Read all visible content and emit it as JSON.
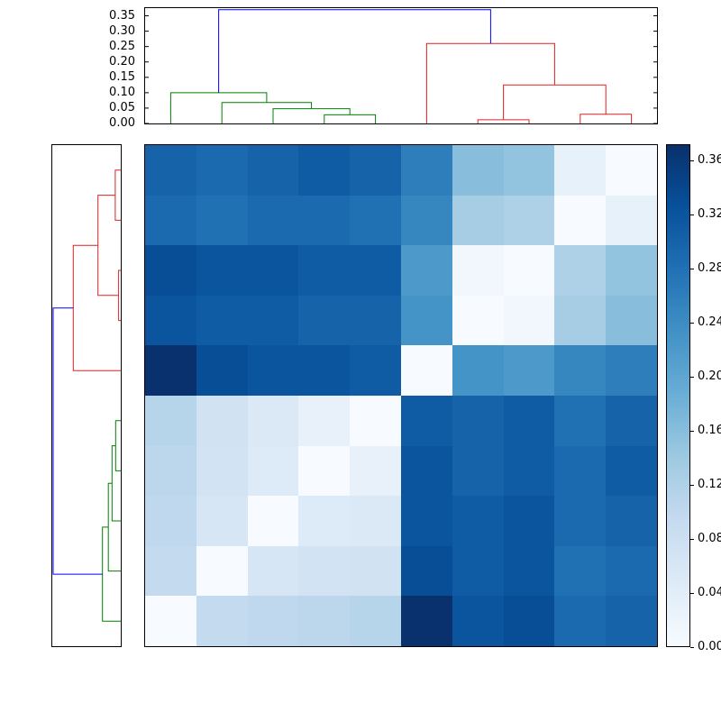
{
  "figure": {
    "background": "#ffffff",
    "colors": {
      "green": "#008000",
      "red": "#e02020",
      "blue": "#0000ff",
      "axis": "#000000"
    }
  },
  "chart_data": {
    "type": "heatmap",
    "title": "",
    "subtitle": "",
    "colormap": "Blues",
    "vmin": 0,
    "vmax": 0.372,
    "n": 10,
    "grid": false,
    "legend": "colorbar-right",
    "matrix": [
      [
        0.3,
        0.29,
        0.3,
        0.31,
        0.3,
        0.26,
        0.16,
        0.15,
        0.03,
        0.0
      ],
      [
        0.29,
        0.28,
        0.29,
        0.29,
        0.28,
        0.25,
        0.13,
        0.12,
        0.0,
        0.03
      ],
      [
        0.33,
        0.32,
        0.32,
        0.31,
        0.31,
        0.22,
        0.012,
        0.0,
        0.12,
        0.15
      ],
      [
        0.32,
        0.31,
        0.31,
        0.3,
        0.3,
        0.23,
        0.0,
        0.012,
        0.13,
        0.16
      ],
      [
        0.37,
        0.33,
        0.32,
        0.32,
        0.31,
        0.0,
        0.23,
        0.22,
        0.25,
        0.26
      ],
      [
        0.11,
        0.072,
        0.052,
        0.028,
        0.0,
        0.31,
        0.3,
        0.31,
        0.28,
        0.3
      ],
      [
        0.105,
        0.07,
        0.048,
        0.0,
        0.028,
        0.32,
        0.3,
        0.31,
        0.29,
        0.31
      ],
      [
        0.1,
        0.062,
        0.0,
        0.048,
        0.052,
        0.32,
        0.31,
        0.32,
        0.29,
        0.3
      ],
      [
        0.095,
        0.0,
        0.062,
        0.07,
        0.072,
        0.33,
        0.31,
        0.32,
        0.28,
        0.29
      ],
      [
        0.0,
        0.095,
        0.1,
        0.105,
        0.11,
        0.37,
        0.32,
        0.33,
        0.29,
        0.3
      ]
    ],
    "colorbar_ticks": [
      0.0,
      0.04,
      0.08,
      0.12,
      0.16,
      0.2,
      0.24,
      0.28,
      0.32,
      0.36
    ],
    "dendro_axis_ticks": [
      0.0,
      0.05,
      0.1,
      0.15,
      0.2,
      0.25,
      0.3,
      0.35
    ],
    "dendro_axis_max": 0.375,
    "top_dendrogram": {
      "orientation": "top",
      "links": [
        {
          "x1": 3.5,
          "h1": 0,
          "x2": 4.5,
          "h2": 0,
          "h": 0.028,
          "color": "green"
        },
        {
          "x1": 2.5,
          "h1": 0,
          "x2": 4.0,
          "h2": 0.028,
          "h": 0.048,
          "color": "green"
        },
        {
          "x1": 1.5,
          "h1": 0,
          "x2": 3.25,
          "h2": 0.048,
          "h": 0.068,
          "color": "green"
        },
        {
          "x1": 0.5,
          "h1": 0,
          "x2": 2.375,
          "h2": 0.068,
          "h": 0.1,
          "color": "green"
        },
        {
          "x1": 6.5,
          "h1": 0,
          "x2": 7.5,
          "h2": 0,
          "h": 0.012,
          "color": "red"
        },
        {
          "x1": 8.5,
          "h1": 0,
          "x2": 9.5,
          "h2": 0,
          "h": 0.03,
          "color": "red"
        },
        {
          "x1": 7.0,
          "h1": 0.012,
          "x2": 9.0,
          "h2": 0.03,
          "h": 0.125,
          "color": "red"
        },
        {
          "x1": 5.5,
          "h1": 0,
          "x2": 8.0,
          "h2": 0.125,
          "h": 0.26,
          "color": "red"
        },
        {
          "x1": 1.4375,
          "h1": 0.1,
          "x2": 6.75,
          "h2": 0.26,
          "h": 0.37,
          "color": "blue"
        }
      ]
    },
    "left_dendrogram": {
      "orientation": "left",
      "links": [
        {
          "x1": 0.5,
          "h1": 0,
          "x2": 1.5,
          "h2": 0,
          "h": 0.03,
          "color": "red"
        },
        {
          "x1": 2.5,
          "h1": 0,
          "x2": 3.5,
          "h2": 0,
          "h": 0.012,
          "color": "red"
        },
        {
          "x1": 1.0,
          "h1": 0.03,
          "x2": 3.0,
          "h2": 0.012,
          "h": 0.125,
          "color": "red"
        },
        {
          "x1": 2.0,
          "h1": 0.125,
          "x2": 4.5,
          "h2": 0,
          "h": 0.26,
          "color": "red"
        },
        {
          "x1": 5.5,
          "h1": 0,
          "x2": 6.5,
          "h2": 0,
          "h": 0.028,
          "color": "green"
        },
        {
          "x1": 6.0,
          "h1": 0.028,
          "x2": 7.5,
          "h2": 0,
          "h": 0.048,
          "color": "green"
        },
        {
          "x1": 6.75,
          "h1": 0.048,
          "x2": 8.5,
          "h2": 0,
          "h": 0.068,
          "color": "green"
        },
        {
          "x1": 7.625,
          "h1": 0.068,
          "x2": 9.5,
          "h2": 0,
          "h": 0.1,
          "color": "green"
        },
        {
          "x1": 3.25,
          "h1": 0.26,
          "x2": 8.5625,
          "h2": 0.1,
          "h": 0.37,
          "color": "blue"
        }
      ]
    }
  }
}
